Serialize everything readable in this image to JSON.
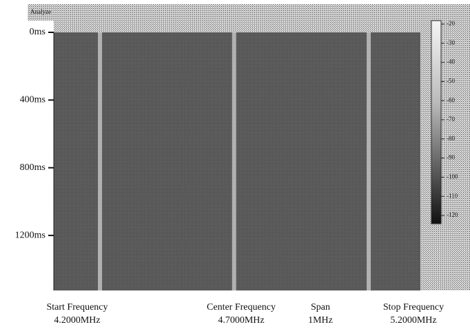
{
  "chart_data": {
    "type": "spectrogram",
    "title": "Analyze",
    "ylim": [
      0,
      1525
    ],
    "yticks": [
      {
        "value": 0,
        "label": "0ms"
      },
      {
        "value": 400,
        "label": "400ms"
      },
      {
        "value": 800,
        "label": "800ms"
      },
      {
        "value": 1200,
        "label": "1200ms"
      }
    ],
    "xlim": [
      4.2,
      5.2
    ],
    "signals": [
      4.326,
      4.692,
      5.059
    ],
    "zlim": [
      -20,
      -120
    ],
    "zticks": [
      -20,
      -30,
      -40,
      -50,
      -60,
      -70,
      -80,
      -90,
      -100,
      -110,
      -120
    ],
    "footer": [
      {
        "title": "Start Frequency",
        "value": "4.2000MHz"
      },
      {
        "title": "Center Frequency",
        "value": "4.7000MHz"
      },
      {
        "title": "Span",
        "value": "1MHz"
      },
      {
        "title": "Stop Frequency",
        "value": "5.2000MHz"
      }
    ]
  }
}
